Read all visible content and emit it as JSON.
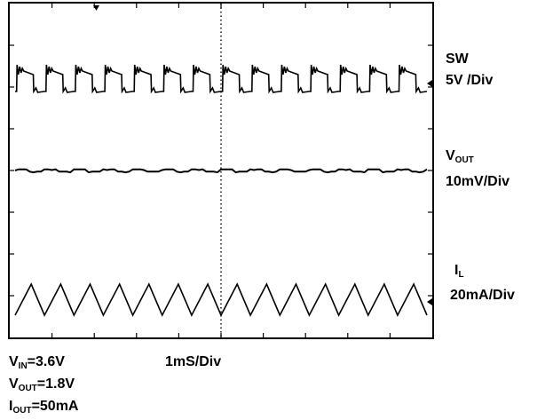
{
  "chart_data": {
    "type": "line",
    "title": "",
    "time_scale": "1mS/Div",
    "divisions": {
      "x": 10,
      "y": 8
    },
    "grid": false,
    "channels": [
      {
        "name": "SW",
        "scale": "5V /Div",
        "waveform": "square switching with ringing",
        "cycles_on_screen": 14
      },
      {
        "name_main": "V",
        "name_sub": "OUT",
        "scale": "10mV/Div",
        "waveform": "flat with small ripple",
        "cycles_on_screen": 14
      },
      {
        "name_main": "I",
        "name_sub": "L",
        "scale": "20mA/Div",
        "waveform": "triangle",
        "cycles_on_screen": 14
      }
    ],
    "conditions": [
      {
        "main": "V",
        "sub": "IN",
        "value": "=3.6V"
      },
      {
        "main": "V",
        "sub": "OUT",
        "value": "=1.8V"
      },
      {
        "main": "I",
        "sub": "OUT",
        "value": "=50mA"
      }
    ]
  }
}
